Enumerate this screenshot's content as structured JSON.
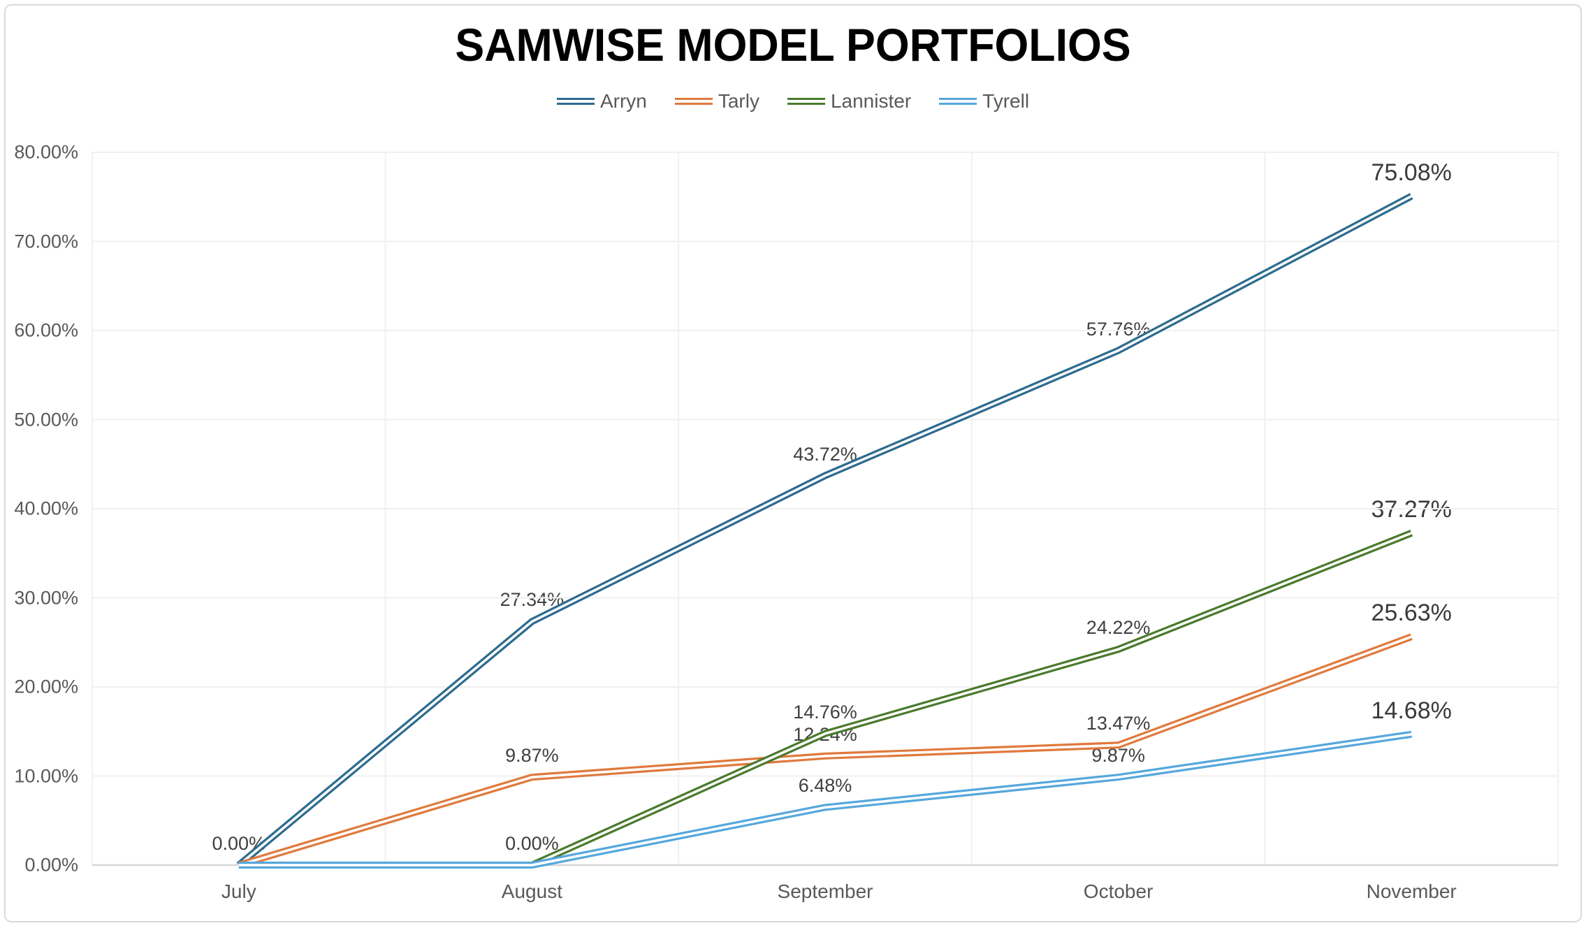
{
  "title": "SAMWISE MODEL PORTFOLIOS",
  "chart_data": {
    "type": "line",
    "title": "SAMWISE MODEL PORTFOLIOS",
    "categories": [
      "July",
      "August",
      "September",
      "October",
      "November"
    ],
    "series": [
      {
        "name": "Arryn",
        "color": "#2D6B8F",
        "values": [
          0,
          27.34,
          43.72,
          57.76,
          75.08
        ]
      },
      {
        "name": "Tarly",
        "color": "#E0793C",
        "values": [
          0,
          9.87,
          12.24,
          13.47,
          25.63
        ]
      },
      {
        "name": "Lannister",
        "color": "#4A7A2C",
        "values": [
          null,
          0,
          14.76,
          24.22,
          37.27
        ]
      },
      {
        "name": "Tyrell",
        "color": "#55A7DC",
        "values": [
          0,
          0,
          6.48,
          9.87,
          14.68
        ]
      }
    ],
    "ylim": [
      0,
      80
    ],
    "y_tick_labels": [
      "0.00%",
      "10.00%",
      "20.00%",
      "30.00%",
      "40.00%",
      "50.00%",
      "60.00%",
      "70.00%",
      "80.00%"
    ],
    "grid": true,
    "legend_position": "top",
    "line_style": "double-line",
    "data_labels": [
      {
        "series": 0,
        "point": 0,
        "text": "0.00%",
        "size": "normal"
      },
      {
        "series": 0,
        "point": 1,
        "text": "27.34%",
        "size": "normal"
      },
      {
        "series": 0,
        "point": 2,
        "text": "43.72%",
        "size": "normal"
      },
      {
        "series": 0,
        "point": 3,
        "text": "57.76%",
        "size": "normal"
      },
      {
        "series": 0,
        "point": 4,
        "text": "75.08%",
        "size": "large"
      },
      {
        "series": 1,
        "point": 1,
        "text": "9.87%",
        "size": "normal"
      },
      {
        "series": 1,
        "point": 2,
        "text": "12.24%",
        "size": "normal"
      },
      {
        "series": 1,
        "point": 3,
        "text": "13.47%",
        "size": "normal"
      },
      {
        "series": 1,
        "point": 4,
        "text": "25.63%",
        "size": "large"
      },
      {
        "series": 2,
        "point": 1,
        "text": "0.00%",
        "size": "normal"
      },
      {
        "series": 2,
        "point": 2,
        "text": "14.76%",
        "size": "normal"
      },
      {
        "series": 2,
        "point": 3,
        "text": "24.22%",
        "size": "normal"
      },
      {
        "series": 2,
        "point": 4,
        "text": "37.27%",
        "size": "large"
      },
      {
        "series": 3,
        "point": 2,
        "text": "6.48%",
        "size": "normal"
      },
      {
        "series": 3,
        "point": 3,
        "text": "9.87%",
        "size": "normal"
      },
      {
        "series": 3,
        "point": 4,
        "text": "14.68%",
        "size": "large"
      }
    ]
  },
  "colors": {
    "grid": "#F0F0F0",
    "axis_line": "#D6D6D6",
    "axis_text": "#595959",
    "data_label_text": "#3F3F3F",
    "frame_border": "#D9D9D9",
    "title_text": "#000000"
  }
}
